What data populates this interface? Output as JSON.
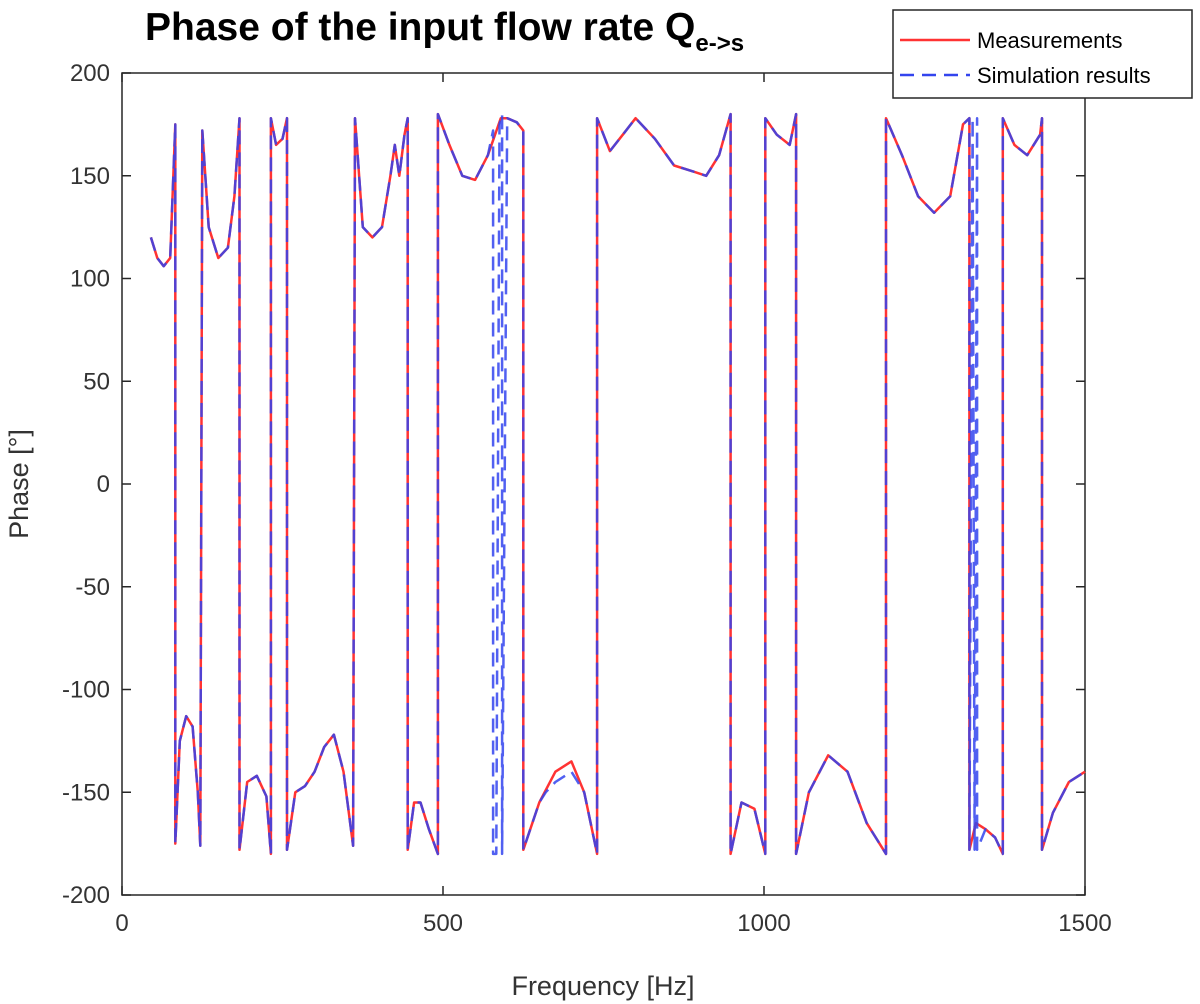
{
  "chart_data": {
    "type": "line",
    "title": "Phase of the input flow rate Q",
    "title_subscript": "e->s",
    "xlabel": "Frequency [Hz]",
    "ylabel": "Phase [°]",
    "xlim": [
      0,
      1500
    ],
    "ylim": [
      -200,
      200
    ],
    "xticks": [
      0,
      500,
      1000,
      1500
    ],
    "yticks": [
      200,
      150,
      100,
      50,
      0,
      -50,
      -100,
      -150,
      -200
    ],
    "grid": false,
    "legend_position": "top-right",
    "series": [
      {
        "name": "Measurements",
        "color": "#ff3333",
        "style": "solid",
        "x": [
          45,
          55,
          65,
          75,
          83,
          83,
          90,
          100,
          110,
          118,
          122,
          125,
          125,
          135,
          150,
          165,
          175,
          183,
          183,
          195,
          210,
          225,
          232,
          232,
          240,
          250,
          257,
          257,
          270,
          285,
          300,
          315,
          330,
          345,
          360,
          363,
          363,
          375,
          390,
          405,
          418,
          425,
          432,
          440,
          445,
          445,
          455,
          465,
          478,
          492,
          492,
          510,
          530,
          550,
          570,
          590,
          600,
          615,
          625,
          625,
          650,
          675,
          700,
          720,
          740,
          740,
          760,
          780,
          800,
          830,
          860,
          890,
          910,
          930,
          948,
          948,
          965,
          985,
          1002,
          1002,
          1020,
          1040,
          1050,
          1050,
          1070,
          1100,
          1130,
          1160,
          1190,
          1190,
          1215,
          1240,
          1265,
          1290,
          1310,
          1320,
          1320,
          1330,
          1345,
          1360,
          1372,
          1372,
          1390,
          1410,
          1430,
          1433,
          1433,
          1450,
          1475,
          1500
        ],
        "y": [
          120,
          110,
          106,
          110,
          175,
          -175,
          -125,
          -113,
          -118,
          -150,
          -176,
          172,
          172,
          125,
          110,
          115,
          140,
          178,
          -178,
          -145,
          -142,
          -152,
          -180,
          178,
          165,
          168,
          178,
          -178,
          -150,
          -147,
          -140,
          -128,
          -122,
          -140,
          -176,
          178,
          178,
          125,
          120,
          125,
          150,
          165,
          150,
          170,
          178,
          -178,
          -155,
          -155,
          -168,
          -180,
          180,
          165,
          150,
          148,
          160,
          178,
          178,
          176,
          172,
          -178,
          -155,
          -140,
          -135,
          -150,
          -180,
          178,
          162,
          170,
          178,
          168,
          155,
          152,
          150,
          160,
          180,
          -180,
          -155,
          -158,
          -180,
          178,
          170,
          165,
          180,
          -180,
          -150,
          -132,
          -140,
          -165,
          -180,
          178,
          160,
          140,
          132,
          140,
          175,
          178,
          -178,
          -165,
          -168,
          -172,
          -180,
          178,
          165,
          160,
          170,
          178,
          -178,
          -160,
          -145,
          -140
        ]
      },
      {
        "name": "Simulation results",
        "color": "#3344ee",
        "style": "dashed",
        "x": [
          45,
          55,
          65,
          75,
          83,
          83,
          90,
          100,
          110,
          118,
          122,
          125,
          125,
          135,
          150,
          165,
          175,
          183,
          183,
          195,
          210,
          225,
          232,
          232,
          240,
          250,
          257,
          257,
          270,
          285,
          300,
          315,
          330,
          345,
          360,
          363,
          363,
          375,
          390,
          405,
          418,
          425,
          432,
          440,
          445,
          445,
          455,
          465,
          478,
          492,
          492,
          510,
          530,
          550,
          570,
          578,
          578,
          583,
          588,
          592,
          592,
          600,
          615,
          625,
          625,
          650,
          660,
          675,
          700,
          720,
          740,
          740,
          760,
          780,
          800,
          830,
          860,
          890,
          910,
          930,
          948,
          948,
          965,
          985,
          1002,
          1002,
          1020,
          1040,
          1050,
          1050,
          1070,
          1100,
          1130,
          1160,
          1190,
          1190,
          1215,
          1240,
          1265,
          1290,
          1310,
          1320,
          1320,
          1325,
          1328,
          1332,
          1332,
          1345,
          1360,
          1372,
          1372,
          1390,
          1410,
          1430,
          1433,
          1433,
          1450,
          1475,
          1500
        ],
        "y": [
          120,
          110,
          106,
          110,
          175,
          -175,
          -125,
          -113,
          -118,
          -150,
          -176,
          172,
          172,
          125,
          110,
          115,
          140,
          178,
          -178,
          -145,
          -142,
          -152,
          -180,
          178,
          165,
          168,
          178,
          -178,
          -150,
          -147,
          -140,
          -128,
          -122,
          -140,
          -176,
          178,
          178,
          125,
          120,
          125,
          150,
          165,
          150,
          170,
          178,
          -178,
          -155,
          -155,
          -168,
          -180,
          180,
          165,
          150,
          148,
          160,
          172,
          -180,
          -180,
          175,
          180,
          -180,
          178,
          176,
          172,
          -178,
          -155,
          -150,
          -145,
          -140,
          -150,
          -180,
          178,
          162,
          170,
          178,
          168,
          155,
          152,
          150,
          160,
          180,
          -180,
          -155,
          -158,
          -180,
          178,
          170,
          165,
          180,
          -180,
          -150,
          -132,
          -140,
          -165,
          -180,
          178,
          160,
          140,
          132,
          140,
          175,
          178,
          -178,
          178,
          -178,
          178,
          -178,
          -168,
          -172,
          -180,
          178,
          165,
          160,
          170,
          178,
          -178,
          -160,
          -145,
          -140
        ]
      }
    ]
  }
}
